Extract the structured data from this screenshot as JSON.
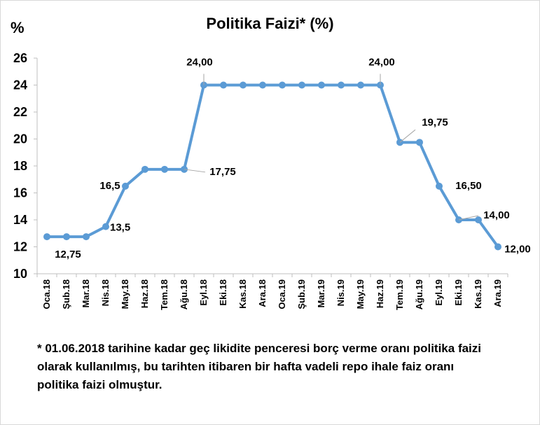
{
  "chart_data": {
    "type": "line",
    "title": "Politika Faizi* (%)",
    "unit_label": "%",
    "categories": [
      "Oca.18",
      "Şub.18",
      "Mar.18",
      "Nis.18",
      "May.18",
      "Haz.18",
      "Tem.18",
      "Ağu.18",
      "Eyl.18",
      "Eki.18",
      "Kas.18",
      "Ara.18",
      "Oca.19",
      "Şub.19",
      "Mar.19",
      "Nis.19",
      "May.19",
      "Haz.19",
      "Tem.19",
      "Ağu.19",
      "Eyl.19",
      "Eki.19",
      "Kas.19",
      "Ara.19"
    ],
    "series": [
      {
        "values": [
          12.75,
          12.75,
          12.75,
          13.5,
          16.5,
          17.75,
          17.75,
          17.75,
          24,
          24,
          24,
          24,
          24,
          24,
          24,
          24,
          24,
          24,
          19.75,
          19.75,
          16.5,
          14,
          14,
          12
        ],
        "color": "#5b9bd5"
      }
    ],
    "ylim": [
      10,
      26
    ],
    "yticks": [
      "10",
      "12",
      "14",
      "16",
      "18",
      "20",
      "22",
      "24",
      "26"
    ],
    "grid": false,
    "legend": "none",
    "data_labels": [
      {
        "index": 1,
        "text": "12,75",
        "leader": false
      },
      {
        "index": 3,
        "text": "13,5",
        "leader": false
      },
      {
        "index": 4,
        "text": "16,5",
        "leader": false
      },
      {
        "index": 7,
        "text": "17,75",
        "leader": true
      },
      {
        "index": 8,
        "text": "24,00",
        "leader": true
      },
      {
        "index": 17,
        "text": "24,00",
        "leader": true
      },
      {
        "index": 18,
        "text": "19,75",
        "leader": true
      },
      {
        "index": 20,
        "text": "16,50",
        "leader": false
      },
      {
        "index": 21,
        "text": "14,00",
        "leader": true
      },
      {
        "index": 23,
        "text": "12,00",
        "leader": false
      }
    ]
  },
  "footnote": "* 01.06.2018 tarihine kadar geç likidite penceresi borç verme oranı politika faizi olarak kullanılmış, bu tarihten itibaren bir hafta vadeli repo ihale faiz oranı politika faizi olmuştur."
}
